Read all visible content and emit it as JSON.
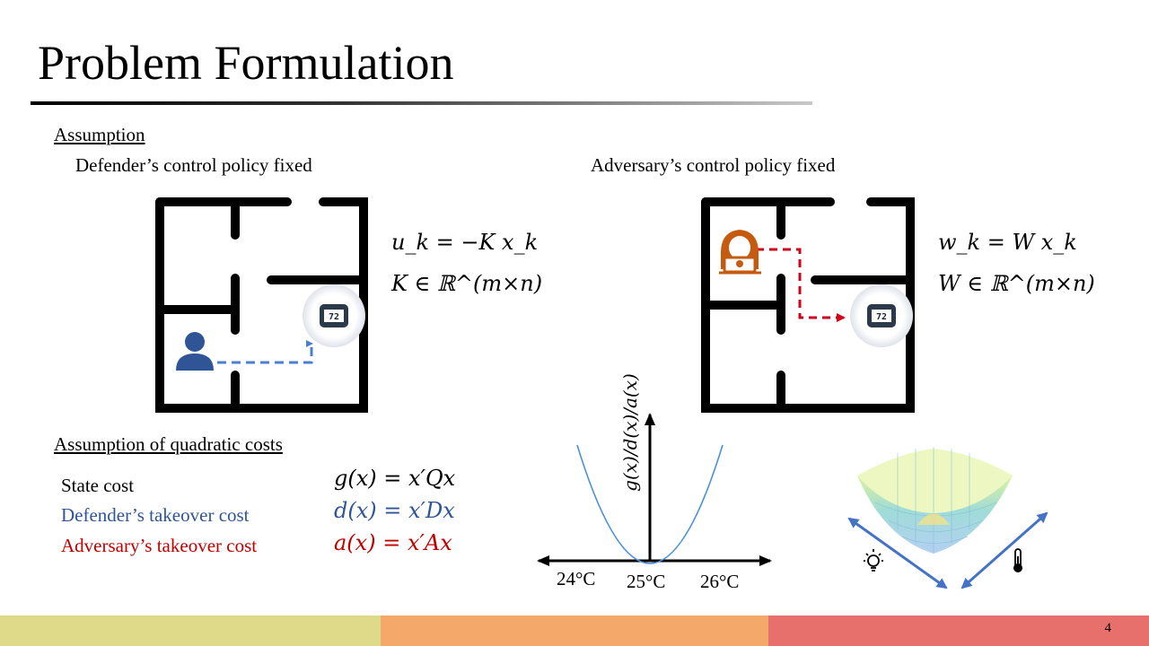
{
  "slide": {
    "title": "Problem Formulation",
    "page_number": "4"
  },
  "assumption": {
    "heading": "Assumption",
    "defender_caption": "Defender’s control policy fixed",
    "adversary_caption": "Adversary’s control policy fixed",
    "defender_eq1": "u_k = −K x_k",
    "defender_eq2": "K ∈ ℝ^(m×n)",
    "adversary_eq1": "w_k = W x_k",
    "adversary_eq2": "W ∈ ℝ^(m×n)",
    "thermostat_display": "72"
  },
  "costs": {
    "heading": "Assumption of quadratic costs",
    "state_label": "State cost",
    "defender_label": "Defender’s takeover cost",
    "adversary_label": "Adversary’s takeover cost",
    "state_eq": "g(x) = x′Qx",
    "defender_eq": "d(x) = x′Dx",
    "adversary_eq": "a(x) = x′Ax",
    "defender_color": "#2f5597",
    "adversary_color": "#c00000"
  },
  "plot": {
    "ylabel": "g(x)/d(x)/a(x)",
    "ticks": [
      "24°C",
      "25°C",
      "26°C"
    ],
    "curve_color": "#4a90d9"
  },
  "icons": {
    "defender": "person-icon",
    "adversary": "hacker-icon",
    "thermostat": "thermostat-icon",
    "light": "lightbulb-icon",
    "temperature": "thermometer-icon"
  },
  "footer_colors": [
    "#dfd98a",
    "#f4a86a",
    "#e8706c"
  ]
}
